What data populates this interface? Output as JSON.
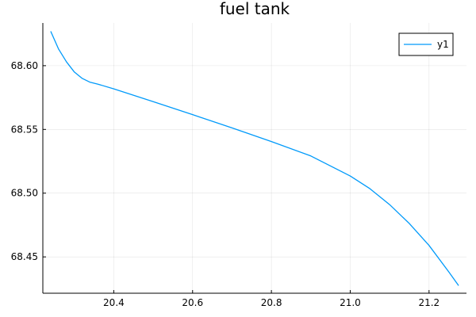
{
  "chart_data": {
    "type": "line",
    "title": "fuel tank",
    "xlabel": "",
    "ylabel": "",
    "xlim": [
      20.22,
      21.295
    ],
    "ylim": [
      68.4215,
      68.6335
    ],
    "xticks": [
      20.4,
      20.6,
      20.8,
      21.0,
      21.2
    ],
    "xtick_labels": [
      "20.4",
      "20.6",
      "20.8",
      "21.0",
      "21.2"
    ],
    "yticks": [
      68.45,
      68.5,
      68.55,
      68.6
    ],
    "ytick_labels": [
      "68.45",
      "68.50",
      "68.55",
      "68.60"
    ],
    "grid": true,
    "legend": "top-right",
    "series": [
      {
        "name": "y1",
        "color": "#009AFA",
        "x": [
          20.24,
          20.26,
          20.28,
          20.3,
          20.32,
          20.34,
          20.36,
          20.4,
          20.5,
          20.6,
          20.7,
          20.8,
          20.9,
          21.0,
          21.05,
          21.1,
          21.15,
          21.2,
          21.25,
          21.275
        ],
        "y": [
          68.627,
          68.613,
          68.603,
          68.595,
          68.59,
          68.587,
          68.5855,
          68.5818,
          68.5718,
          68.5616,
          68.5512,
          68.5405,
          68.5292,
          68.5135,
          68.5035,
          68.491,
          68.4762,
          68.459,
          68.4383,
          68.4275
        ]
      }
    ]
  }
}
